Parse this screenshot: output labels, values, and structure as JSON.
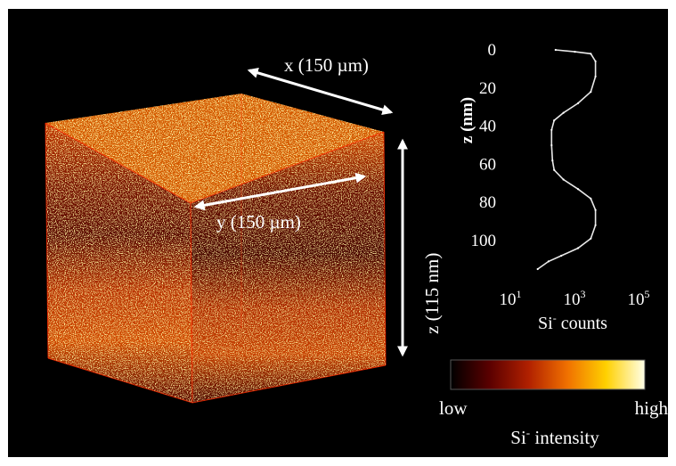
{
  "colors": {
    "background": "#000000",
    "text": "#ffffff",
    "cube_dark": "#4a0700",
    "cube_mid": "#b83200",
    "cube_bright": "#ffd040",
    "cube_edge": "#ff2a00",
    "colorbar_stops": [
      "#000000",
      "#5a0000",
      "#b02000",
      "#f07000",
      "#ffd000",
      "#ffffe8"
    ]
  },
  "labels": {
    "x_dim": "x (150 µm)",
    "y_dim": "y (150 µm)",
    "z_dim": "z (115 nm)"
  },
  "colorbar": {
    "low": "low",
    "high": "high",
    "title_base": "Si",
    "title_sup": "-",
    "title_rest": " intensity"
  },
  "chart_data": {
    "type": "line",
    "title": "",
    "xlabel": {
      "base": "Si",
      "sup": "-",
      "rest": " counts"
    },
    "ylabel": "z (nm)",
    "x_scale": "log",
    "xlim": [
      10,
      100000
    ],
    "ylim": [
      0,
      115
    ],
    "y_inverted": true,
    "x_ticks": [
      {
        "value": 10,
        "base": "10",
        "exp": "1"
      },
      {
        "value": 1000,
        "base": "10",
        "exp": "3"
      },
      {
        "value": 100000,
        "base": "10",
        "exp": "5"
      }
    ],
    "y_ticks": [
      0,
      20,
      40,
      60,
      80,
      100
    ],
    "series": [
      {
        "x": [
          200,
          800,
          2500,
          3500,
          3500,
          2500,
          1000,
          350,
          180,
          150,
          150,
          160,
          180,
          350,
          1000,
          2500,
          3500,
          3500,
          2500,
          1000,
          300,
          120,
          55
        ],
        "y": [
          0,
          1,
          2,
          6,
          14,
          22,
          28,
          33,
          37,
          42,
          50,
          58,
          63,
          68,
          73,
          78,
          84,
          92,
          99,
          104,
          108,
          111,
          115
        ]
      }
    ]
  }
}
